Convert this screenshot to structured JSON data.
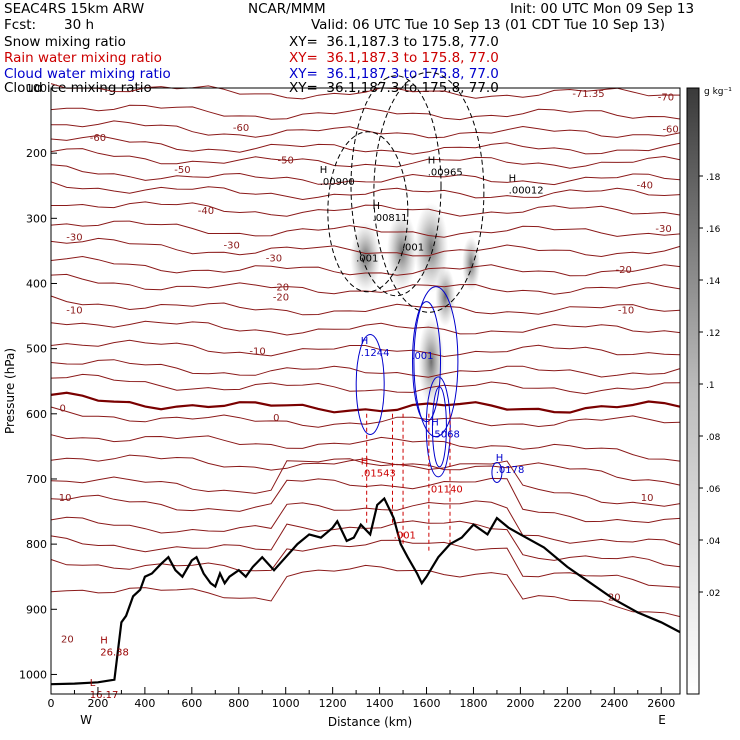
{
  "header": {
    "model": "SEAC4RS 15km ARW",
    "fcst_label": "Fcst:",
    "fcst_value": "30 h",
    "org": "NCAR/MMM",
    "init": "Init: 00 UTC Mon 09 Sep 13",
    "valid": "Valid: 06 UTC Tue 10 Sep 13 (01 CDT Tue 10 Sep 13)"
  },
  "fields": [
    {
      "label": "Snow mixing ratio",
      "xy": "XY=  36.1,187.3 to 175.8, 77.0",
      "color": "#000000"
    },
    {
      "label": "Rain water mixing ratio",
      "xy": "XY=  36.1,187.3 to 175.8, 77.0",
      "color": "#cc0000"
    },
    {
      "label": "Cloud water mixing ratio",
      "xy": "XY=  36.1,187.3 to 175.8, 77.0",
      "color": "#0000cc"
    },
    {
      "label": "Cloud ice mixing ratio",
      "xy": "XY=  36.1,187.3 to 175.8, 77.0",
      "color": "#000000"
    }
  ],
  "colorbar": {
    "unit": "g kg⁻¹",
    "ticks": [
      ".18",
      ".16",
      ".14",
      ".12",
      ".1",
      ".08",
      ".06",
      ".04",
      ".02"
    ]
  },
  "chart_data": {
    "type": "cross-section",
    "xlabel": "Distance (km)",
    "ylabel": "Pressure (hPa)",
    "xlim": [
      0,
      2680
    ],
    "ylim": [
      1030,
      100
    ],
    "x_ticks": [
      "0",
      "100",
      "200",
      "300",
      "400",
      "500",
      "600",
      "700",
      "800",
      "900",
      "1000",
      "1100",
      "1200",
      "1300",
      "1400",
      "1500",
      "1600",
      "1700",
      "1800",
      "1900",
      "2000",
      "2100",
      "2200",
      "2300",
      "2400",
      "2500",
      "2600"
    ],
    "x_tick_values": [
      0,
      100,
      200,
      300,
      400,
      500,
      600,
      700,
      800,
      900,
      1000,
      1100,
      1200,
      1300,
      1400,
      1500,
      1600,
      1700,
      1800,
      1900,
      2000,
      2100,
      2200,
      2300,
      2400,
      2500,
      2600
    ],
    "x_major_labels": [
      "0",
      "200",
      "400",
      "600",
      "800",
      "1000",
      "1200",
      "1400",
      "1600",
      "1800",
      "2000",
      "2200",
      "2400",
      "2600"
    ],
    "y_ticks": [
      "100",
      "200",
      "300",
      "400",
      "500",
      "600",
      "700",
      "800",
      "900",
      "1000"
    ],
    "y_tick_values": [
      100,
      200,
      300,
      400,
      500,
      600,
      700,
      800,
      900,
      1000
    ],
    "end_labels": {
      "left": "W",
      "right": "E"
    },
    "temperature_labels": [
      {
        "text": "-60",
        "x": 810,
        "p": 160
      },
      {
        "text": "-60",
        "x": 200,
        "p": 175
      },
      {
        "text": "-71.35",
        "x": 2290,
        "p": 108
      },
      {
        "text": "-70",
        "x": 2620,
        "p": 113
      },
      {
        "text": "-60",
        "x": 2640,
        "p": 162
      },
      {
        "text": "-50",
        "x": 1000,
        "p": 210
      },
      {
        "text": "-50",
        "x": 560,
        "p": 224
      },
      {
        "text": "-40",
        "x": 2530,
        "p": 248
      },
      {
        "text": "-40",
        "x": 660,
        "p": 287
      },
      {
        "text": "-30",
        "x": 2610,
        "p": 315
      },
      {
        "text": "-30",
        "x": 100,
        "p": 328
      },
      {
        "text": "-30",
        "x": 770,
        "p": 340
      },
      {
        "text": "-30",
        "x": 950,
        "p": 360
      },
      {
        "text": "-20",
        "x": 2440,
        "p": 378
      },
      {
        "text": "-20",
        "x": 980,
        "p": 405
      },
      {
        "text": "-20",
        "x": 980,
        "p": 420
      },
      {
        "text": "-10",
        "x": 100,
        "p": 440
      },
      {
        "text": "-10",
        "x": 2450,
        "p": 440
      },
      {
        "text": "-10",
        "x": 880,
        "p": 503
      },
      {
        "text": "0",
        "x": 50,
        "p": 590
      },
      {
        "text": "0",
        "x": 960,
        "p": 605
      },
      {
        "text": "10",
        "x": 60,
        "p": 728
      },
      {
        "text": "10",
        "x": 2540,
        "p": 728
      },
      {
        "text": "20",
        "x": 2400,
        "p": 880
      },
      {
        "text": "20",
        "x": 70,
        "p": 945
      }
    ],
    "extrema_labels": [
      {
        "mark": "H",
        "value": ".00900",
        "x": 1145,
        "p": 243,
        "color": "#000000"
      },
      {
        "mark": "H",
        "value": ".00811",
        "x": 1370,
        "p": 298,
        "color": "#000000"
      },
      {
        "mark": "H",
        "value": ".00965",
        "x": 1605,
        "p": 228,
        "color": "#000000"
      },
      {
        "mark": "H",
        "value": ".00012",
        "x": 1950,
        "p": 256,
        "color": "#000000"
      },
      {
        "mark": "",
        "value": ".001",
        "x": 1300,
        "p": 360,
        "color": "#000000"
      },
      {
        "mark": "",
        "value": ".001",
        "x": 1495,
        "p": 343,
        "color": "#000000"
      },
      {
        "mark": "H",
        "value": ".1244",
        "x": 1320,
        "p": 505,
        "color": "#0000cc"
      },
      {
        "mark": "",
        "value": ".001",
        "x": 1535,
        "p": 510,
        "color": "#0000cc"
      },
      {
        "mark": "H",
        "value": ".5068",
        "x": 1620,
        "p": 630,
        "color": "#0000cc"
      },
      {
        "mark": "H",
        "value": ".0178",
        "x": 1895,
        "p": 685,
        "color": "#0000cc"
      },
      {
        "mark": "H",
        "value": ".01543",
        "x": 1320,
        "p": 690,
        "color": "#cc0000"
      },
      {
        "mark": "",
        "value": ".01140",
        "x": 1605,
        "p": 715,
        "color": "#cc0000"
      },
      {
        "mark": "",
        "value": ".001",
        "x": 1460,
        "p": 785,
        "color": "#cc0000"
      },
      {
        "mark": "H",
        "value": "26.38",
        "x": 210,
        "p": 965,
        "color": "#990000"
      },
      {
        "mark": "L",
        "value": "16.17",
        "x": 165,
        "p": 1030,
        "color": "#990000"
      }
    ],
    "terrain": [
      [
        0,
        1015
      ],
      [
        100,
        1014
      ],
      [
        200,
        1012
      ],
      [
        270,
        1008
      ],
      [
        300,
        920
      ],
      [
        320,
        910
      ],
      [
        350,
        880
      ],
      [
        380,
        870
      ],
      [
        400,
        850
      ],
      [
        430,
        845
      ],
      [
        470,
        830
      ],
      [
        500,
        820
      ],
      [
        530,
        840
      ],
      [
        560,
        850
      ],
      [
        600,
        825
      ],
      [
        620,
        820
      ],
      [
        650,
        845
      ],
      [
        680,
        860
      ],
      [
        700,
        865
      ],
      [
        720,
        845
      ],
      [
        740,
        860
      ],
      [
        760,
        850
      ],
      [
        800,
        840
      ],
      [
        830,
        850
      ],
      [
        860,
        835
      ],
      [
        900,
        820
      ],
      [
        950,
        840
      ],
      [
        1000,
        820
      ],
      [
        1050,
        800
      ],
      [
        1100,
        785
      ],
      [
        1150,
        790
      ],
      [
        1200,
        775
      ],
      [
        1220,
        765
      ],
      [
        1260,
        795
      ],
      [
        1290,
        790
      ],
      [
        1320,
        770
      ],
      [
        1360,
        785
      ],
      [
        1390,
        740
      ],
      [
        1420,
        730
      ],
      [
        1460,
        760
      ],
      [
        1490,
        800
      ],
      [
        1520,
        820
      ],
      [
        1560,
        845
      ],
      [
        1580,
        860
      ],
      [
        1600,
        850
      ],
      [
        1650,
        820
      ],
      [
        1700,
        800
      ],
      [
        1750,
        790
      ],
      [
        1800,
        770
      ],
      [
        1860,
        785
      ],
      [
        1900,
        760
      ],
      [
        1950,
        775
      ],
      [
        2000,
        785
      ],
      [
        2100,
        805
      ],
      [
        2200,
        835
      ],
      [
        2300,
        860
      ],
      [
        2400,
        885
      ],
      [
        2500,
        905
      ],
      [
        2600,
        920
      ],
      [
        2680,
        935
      ]
    ]
  }
}
